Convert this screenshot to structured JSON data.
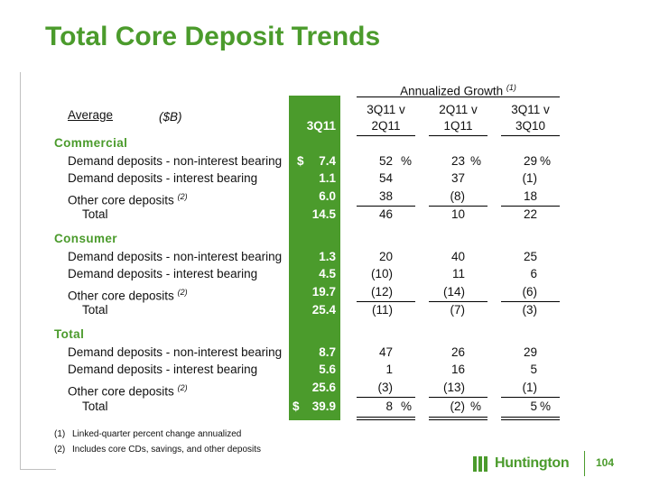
{
  "title": "Total Core Deposit Trends",
  "header": {
    "group_label": "Annualized Growth",
    "group_sup": "(1)",
    "average": "Average",
    "units": "($B)",
    "col_q": "3Q11",
    "col1_top": "3Q11 v",
    "col1_bot": "2Q11",
    "col2_top": "2Q11 v",
    "col2_bot": "1Q11",
    "col3_top": "3Q11 v",
    "col3_bot": "3Q10"
  },
  "commercial": {
    "label": "Commercial",
    "r1": {
      "label": "Demand deposits - non-interest bearing",
      "dollar": "$",
      "val": "7.4",
      "c1": "52",
      "c2": "23",
      "c3": "29",
      "pct": "%"
    },
    "r2": {
      "label": "Demand deposits - interest bearing",
      "val": "1.1",
      "c1": "54",
      "c2": "37",
      "c3": "(1)"
    },
    "r3": {
      "label": "Other core deposits",
      "sup": "(2)",
      "val": "6.0",
      "c1": "38",
      "c2": "(8)",
      "c3": "18"
    },
    "total": {
      "label": "Total",
      "val": "14.5",
      "c1": "46",
      "c2": "10",
      "c3": "22"
    }
  },
  "consumer": {
    "label": "Consumer",
    "r1": {
      "label": "Demand deposits - non-interest bearing",
      "val": "1.3",
      "c1": "20",
      "c2": "40",
      "c3": "25"
    },
    "r2": {
      "label": "Demand deposits - interest bearing",
      "val": "4.5",
      "c1": "(10)",
      "c2": "11",
      "c3": "6"
    },
    "r3": {
      "label": "Other core deposits",
      "sup": "(2)",
      "val": "19.7",
      "c1": "(12)",
      "c2": "(14)",
      "c3": "(6)"
    },
    "total": {
      "label": "Total",
      "val": "25.4",
      "c1": "(11)",
      "c2": "(7)",
      "c3": "(3)"
    }
  },
  "total": {
    "label": "Total",
    "r1": {
      "label": "Demand deposits - non-interest bearing",
      "val": "8.7",
      "c1": "47",
      "c2": "26",
      "c3": "29"
    },
    "r2": {
      "label": "Demand deposits - interest bearing",
      "val": "5.6",
      "c1": "1",
      "c2": "16",
      "c3": "5"
    },
    "r3": {
      "label": "Other core deposits",
      "sup": "(2)",
      "val": "25.6",
      "c1": "(3)",
      "c2": "(13)",
      "c3": "(1)"
    },
    "total": {
      "label": "Total",
      "dollar": "$",
      "val": "39.9",
      "c1": "8",
      "c2": "(2)",
      "c3": "5",
      "pct": "%"
    }
  },
  "footnotes": {
    "f1_num": "(1)",
    "f1_text": "Linked-quarter percent change annualized",
    "f2_num": "(2)",
    "f2_text": "Includes core CDs, savings, and other deposits"
  },
  "footer": {
    "brand": "Huntington",
    "page": "104"
  },
  "colors": {
    "accent": "#4b9b2c"
  }
}
